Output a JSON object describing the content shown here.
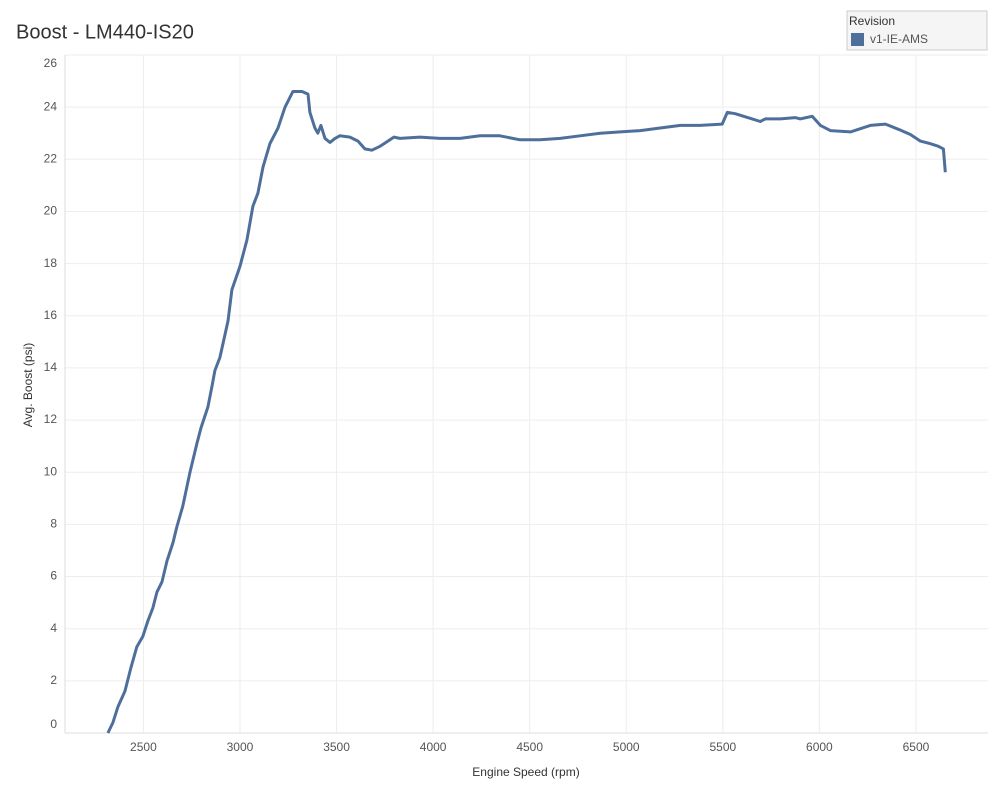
{
  "chart_data": {
    "type": "line",
    "title": "Boost - LM440-IS20",
    "x_label": "Engine Speed (rpm)",
    "y_label": "Avg. Boost (psi)",
    "legend_title": "Revision",
    "legend": "top-right",
    "grid": true,
    "xlim": [
      2094,
      6873
    ],
    "ylim": [
      0,
      26
    ],
    "xticks": [
      2500,
      3000,
      3500,
      4000,
      4500,
      5000,
      5500,
      6000,
      6500
    ],
    "yticks": [
      0,
      2,
      4,
      6,
      8,
      10,
      12,
      14,
      16,
      18,
      20,
      22,
      24,
      26
    ],
    "series": [
      {
        "name": "v1-IE-AMS",
        "color": "#4e6f9b",
        "x": [
          2316,
          2342,
          2368,
          2404,
          2435,
          2466,
          2497,
          2523,
          2549,
          2570,
          2596,
          2622,
          2653,
          2673,
          2704,
          2741,
          2777,
          2798,
          2834,
          2855,
          2870,
          2896,
          2938,
          2958,
          3000,
          3036,
          3067,
          3093,
          3119,
          3155,
          3197,
          3233,
          3274,
          3321,
          3352,
          3362,
          3388,
          3403,
          3419,
          3440,
          3466,
          3492,
          3517,
          3569,
          3611,
          3647,
          3683,
          3725,
          3766,
          3797,
          3828,
          3932,
          4035,
          4139,
          4243,
          4346,
          4450,
          4554,
          4658,
          4761,
          4865,
          4969,
          5072,
          5176,
          5280,
          5383,
          5497,
          5523,
          5564,
          5652,
          5694,
          5720,
          5798,
          5875,
          5901,
          5963,
          6005,
          6057,
          6161,
          6264,
          6342,
          6409,
          6471,
          6523,
          6575,
          6616,
          6642,
          6652
        ],
        "values": [
          0,
          0.4,
          1.0,
          1.6,
          2.5,
          3.3,
          3.7,
          4.3,
          4.8,
          5.4,
          5.8,
          6.6,
          7.3,
          7.9,
          8.7,
          10.0,
          11.1,
          11.7,
          12.5,
          13.3,
          13.9,
          14.4,
          15.8,
          17.0,
          17.9,
          18.9,
          20.2,
          20.7,
          21.7,
          22.6,
          23.2,
          24.0,
          24.6,
          24.6,
          24.5,
          23.8,
          23.2,
          23.0,
          23.3,
          22.8,
          22.65,
          22.8,
          22.9,
          22.85,
          22.7,
          22.4,
          22.35,
          22.5,
          22.7,
          22.85,
          22.8,
          22.85,
          22.8,
          22.8,
          22.9,
          22.9,
          22.75,
          22.75,
          22.8,
          22.9,
          23.0,
          23.05,
          23.1,
          23.2,
          23.3,
          23.3,
          23.35,
          23.8,
          23.75,
          23.55,
          23.45,
          23.55,
          23.55,
          23.6,
          23.55,
          23.65,
          23.3,
          23.1,
          23.05,
          23.3,
          23.35,
          23.15,
          22.95,
          22.7,
          22.6,
          22.5,
          22.4,
          21.5
        ]
      }
    ]
  }
}
